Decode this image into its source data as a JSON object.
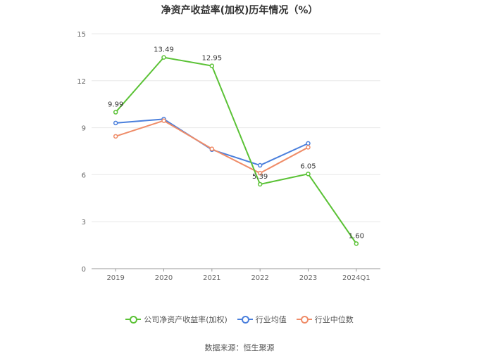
{
  "chart_data": {
    "type": "line",
    "title": "净资产收益率(加权)历年情况（%）",
    "categories": [
      "2019",
      "2020",
      "2021",
      "2022",
      "2023",
      "2024Q1"
    ],
    "ylim": [
      0,
      15
    ],
    "yticks": [
      0,
      3,
      6,
      9,
      12,
      15
    ],
    "grid": true,
    "legend_position": "bottom",
    "series": [
      {
        "name": "公司净资产收益率(加权)",
        "color": "#5bc236",
        "values": [
          9.99,
          13.49,
          12.95,
          5.39,
          6.05,
          1.6
        ],
        "labels": [
          "9.99",
          "13.49",
          "12.95",
          "5.39",
          "6.05",
          "1.60"
        ]
      },
      {
        "name": "行业均值",
        "color": "#4a7fdc",
        "values": [
          9.3,
          9.55,
          7.6,
          6.6,
          8.0,
          null
        ]
      },
      {
        "name": "行业中位数",
        "color": "#ef8c68",
        "values": [
          8.45,
          9.45,
          7.65,
          6.1,
          7.75,
          null
        ]
      }
    ]
  },
  "source": "数据来源：恒生聚源"
}
